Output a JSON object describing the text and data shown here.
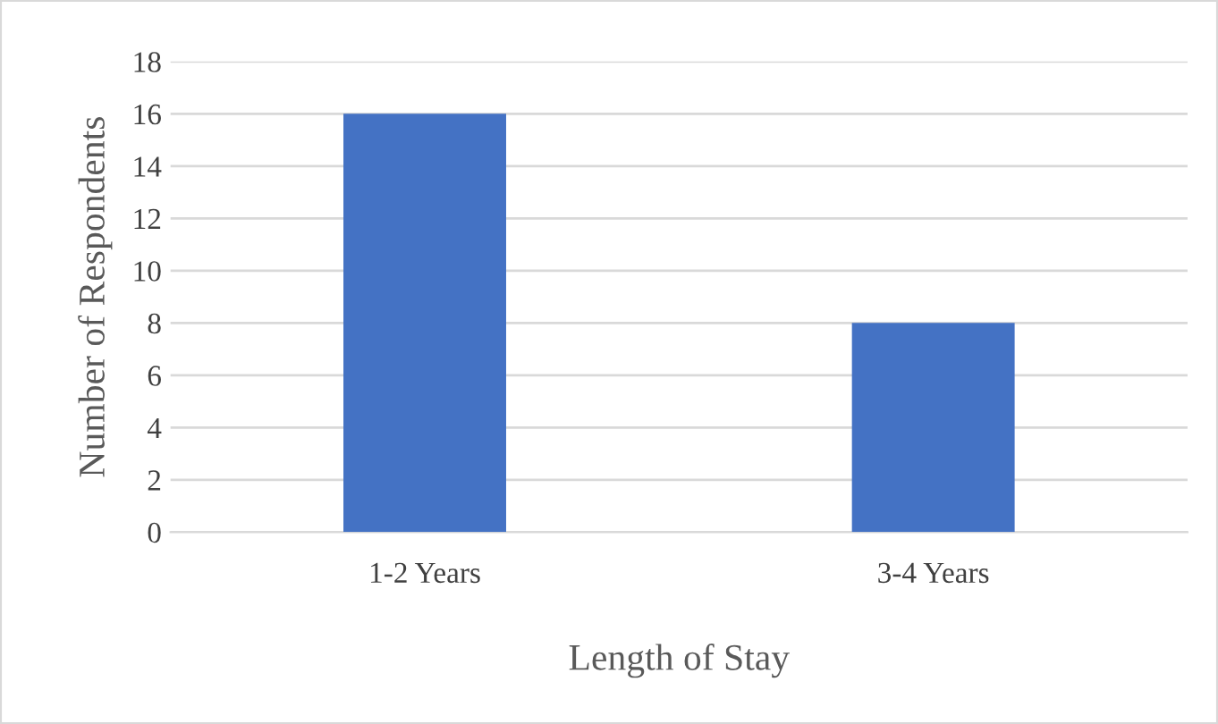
{
  "chart_data": {
    "type": "bar",
    "xlabel": "Length of Stay",
    "ylabel": "Number of Respondents",
    "categories": [
      "1-2 Years",
      "3-4 Years"
    ],
    "values": [
      16,
      8
    ],
    "color": "#4472c4",
    "ylim": [
      0,
      18
    ],
    "yticks": [
      0,
      2,
      4,
      6,
      8,
      10,
      12,
      14,
      16,
      18
    ],
    "grid": "y"
  }
}
